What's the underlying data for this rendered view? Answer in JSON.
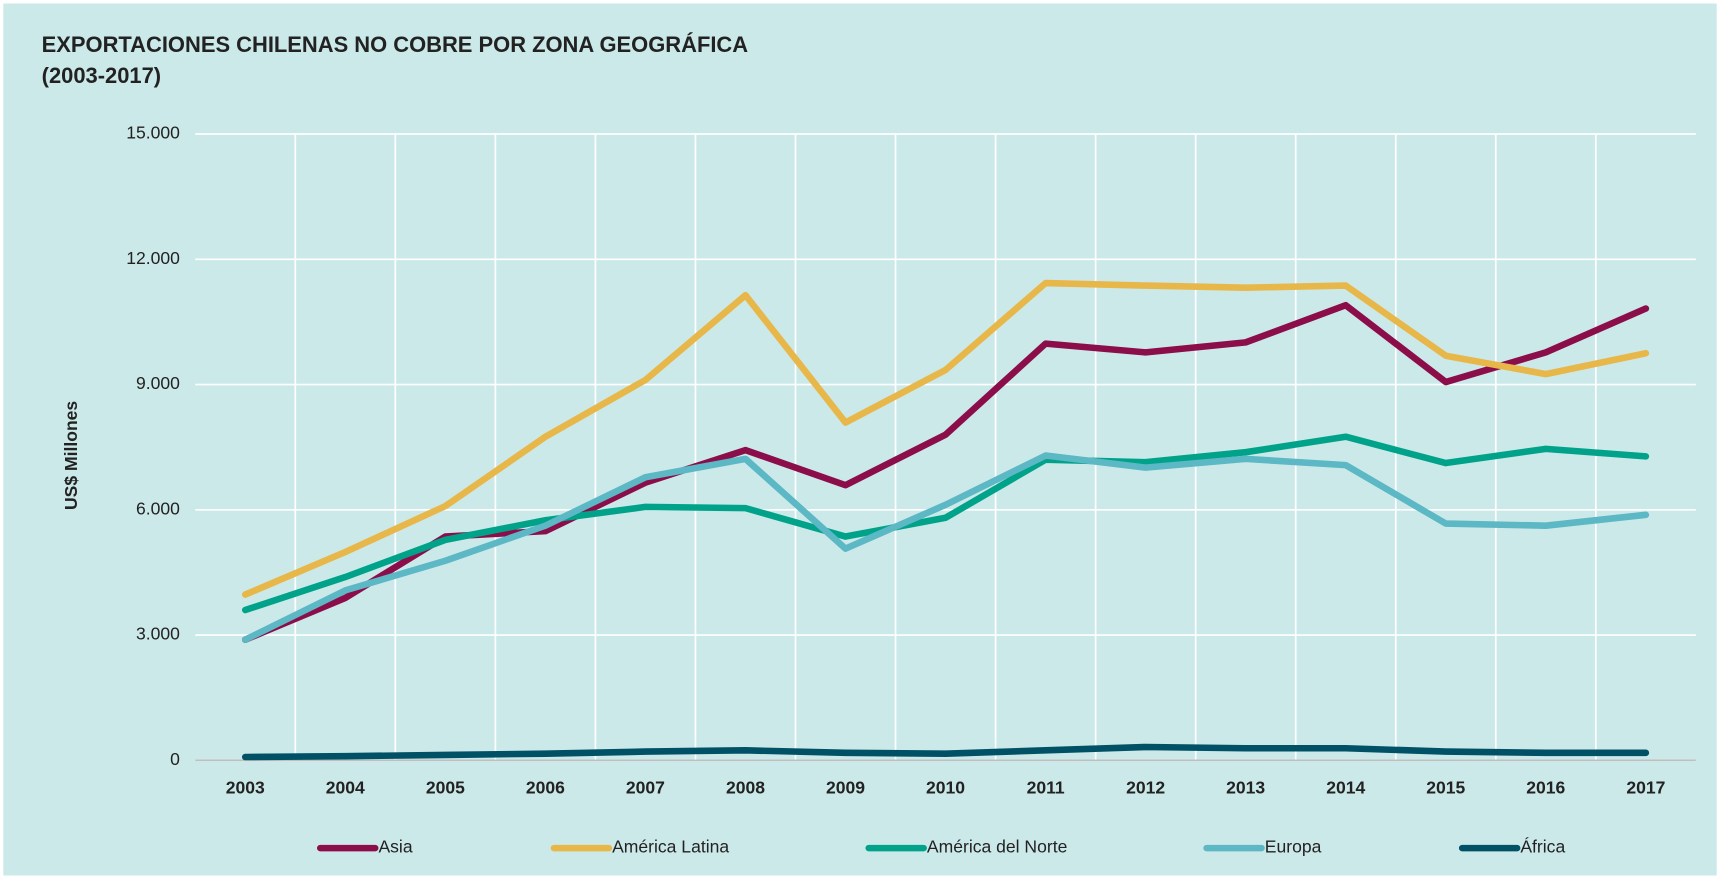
{
  "chart_data": {
    "type": "line",
    "title": "EXPORTACIONES CHILENAS NO COBRE POR ZONA GEOGRÁFICA",
    "subtitle": "(2003-2017)",
    "y_label": "US$ Millones",
    "categories": [
      "2003",
      "2004",
      "2005",
      "2006",
      "2007",
      "2008",
      "2009",
      "2010",
      "2011",
      "2012",
      "2013",
      "2014",
      "2015",
      "2016",
      "2017"
    ],
    "ylim": [
      0,
      15000
    ],
    "yticks": [
      0,
      {
        "value": 3000,
        "label": "3.000"
      },
      {
        "value": 6000,
        "label": "6.000"
      },
      {
        "value": 9000,
        "label": "9.000"
      },
      {
        "value": 12000,
        "label": "12.000"
      },
      {
        "value": 15000,
        "label": "15.000"
      }
    ],
    "grid": true,
    "legend": "bottom",
    "series": [
      {
        "name": "Asia",
        "color": "#8b0d4a",
        "values": [
          2890,
          3890,
          5360,
          5490,
          6650,
          7430,
          6590,
          7800,
          9980,
          9770,
          10010,
          10900,
          9060,
          9770,
          10820
        ]
      },
      {
        "name": "América Latina",
        "color": "#e8b74a",
        "values": [
          3970,
          4990,
          6090,
          7750,
          9110,
          11140,
          8090,
          9350,
          11430,
          11370,
          11320,
          11370,
          9690,
          9250,
          9750
        ]
      },
      {
        "name": "América del Norte",
        "color": "#00a389",
        "values": [
          3600,
          4390,
          5280,
          5750,
          6070,
          6040,
          5360,
          5810,
          7200,
          7140,
          7380,
          7750,
          7120,
          7460,
          7280
        ]
      },
      {
        "name": "Europa",
        "color": "#5bb8c4",
        "values": [
          2890,
          4070,
          4780,
          5620,
          6780,
          7220,
          5070,
          6120,
          7300,
          7010,
          7220,
          7070,
          5670,
          5620,
          5880
        ]
      },
      {
        "name": "África",
        "color": "#005166",
        "values": [
          80,
          100,
          130,
          160,
          210,
          240,
          180,
          160,
          240,
          320,
          290,
          290,
          210,
          180,
          180
        ]
      }
    ]
  }
}
